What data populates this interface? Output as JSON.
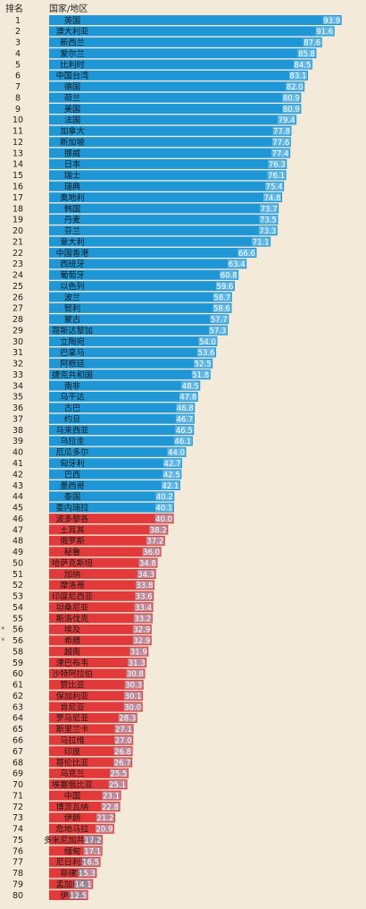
{
  "header": {
    "rank_label": "排名",
    "country_label": "国家/地区"
  },
  "chart_data": {
    "type": "bar",
    "orientation": "horizontal",
    "xlim": [
      0,
      100
    ],
    "grid": false,
    "colors": {
      "blue": "#1f97d6",
      "red": "#e23a3a",
      "value_box": "#9bd2ef",
      "background": "#f3ead9"
    },
    "rows": [
      {
        "rank": "1",
        "country": "英国",
        "value": 93.9
      },
      {
        "rank": "2",
        "country": "澳大利亚",
        "value": 91.6
      },
      {
        "rank": "3",
        "country": "新西兰",
        "value": 87.6
      },
      {
        "rank": "4",
        "country": "爱尔兰",
        "value": 85.8
      },
      {
        "rank": "5",
        "country": "比利时",
        "value": 84.5
      },
      {
        "rank": "6",
        "country": "中国台湾",
        "value": 83.1
      },
      {
        "rank": "7",
        "country": "德国",
        "value": 82.0
      },
      {
        "rank": "8",
        "country": "荷兰",
        "value": 80.9
      },
      {
        "rank": "9",
        "country": "美国",
        "value": 80.9
      },
      {
        "rank": "10",
        "country": "法国",
        "value": 79.4
      },
      {
        "rank": "11",
        "country": "加拿大",
        "value": 77.8
      },
      {
        "rank": "12",
        "country": "新加坡",
        "value": 77.6
      },
      {
        "rank": "13",
        "country": "挪威",
        "value": 77.4
      },
      {
        "rank": "14",
        "country": "日本",
        "value": 76.3
      },
      {
        "rank": "15",
        "country": "瑞士",
        "value": 76.1
      },
      {
        "rank": "16",
        "country": "瑞典",
        "value": 75.4
      },
      {
        "rank": "17",
        "country": "奥地利",
        "value": 74.8
      },
      {
        "rank": "18",
        "country": "韩国",
        "value": 73.7
      },
      {
        "rank": "19",
        "country": "丹麦",
        "value": 73.5
      },
      {
        "rank": "20",
        "country": "芬兰",
        "value": 73.3
      },
      {
        "rank": "21",
        "country": "意大利",
        "value": 71.1
      },
      {
        "rank": "22",
        "country": "中国香港",
        "value": 66.6
      },
      {
        "rank": "23",
        "country": "西班牙",
        "value": 63.4
      },
      {
        "rank": "24",
        "country": "葡萄牙",
        "value": 60.8
      },
      {
        "rank": "25",
        "country": "以色列",
        "value": 59.6
      },
      {
        "rank": "26",
        "country": "波兰",
        "value": 58.7
      },
      {
        "rank": "27",
        "country": "智利",
        "value": 58.6
      },
      {
        "rank": "28",
        "country": "蒙古",
        "value": 57.7
      },
      {
        "rank": "29",
        "country": "哥斯达黎加",
        "value": 57.3
      },
      {
        "rank": "30",
        "country": "立陶宛",
        "value": 54.0
      },
      {
        "rank": "31",
        "country": "巴拿马",
        "value": 53.6
      },
      {
        "rank": "32",
        "country": "阿根廷",
        "value": 52.5
      },
      {
        "rank": "33",
        "country": "捷克共和国",
        "value": 51.8
      },
      {
        "rank": "34",
        "country": "南非",
        "value": 48.5
      },
      {
        "rank": "35",
        "country": "乌干达",
        "value": 47.8
      },
      {
        "rank": "36",
        "country": "古巴",
        "value": 46.8
      },
      {
        "rank": "37",
        "country": "约旦",
        "value": 46.7
      },
      {
        "rank": "38",
        "country": "马来西亚",
        "value": 46.5
      },
      {
        "rank": "39",
        "country": "乌拉圭",
        "value": 46.1
      },
      {
        "rank": "40",
        "country": "厄瓜多尔",
        "value": 44.0
      },
      {
        "rank": "41",
        "country": "匈牙利",
        "value": 42.7
      },
      {
        "rank": "42",
        "country": "巴西",
        "value": 42.5
      },
      {
        "rank": "43",
        "country": "墨西哥",
        "value": 42.1
      },
      {
        "rank": "44",
        "country": "泰国",
        "value": 40.2
      },
      {
        "rank": "45",
        "country": "委内瑞拉",
        "value": 40.1
      },
      {
        "rank": "46",
        "country": "波多黎各",
        "value": 40.0
      },
      {
        "rank": "47",
        "country": "土耳其",
        "value": 38.2
      },
      {
        "rank": "48",
        "country": "俄罗斯",
        "value": 37.2
      },
      {
        "rank": "49",
        "country": "秘鲁",
        "value": 36.0
      },
      {
        "rank": "50",
        "country": "哈萨克斯坦",
        "value": 34.8
      },
      {
        "rank": "51",
        "country": "加纳",
        "value": 34.3
      },
      {
        "rank": "52",
        "country": "摩洛哥",
        "value": 33.8
      },
      {
        "rank": "53",
        "country": "印度尼西亚",
        "value": 33.6
      },
      {
        "rank": "54",
        "country": "坦桑尼亚",
        "value": 33.4
      },
      {
        "rank": "55",
        "country": "斯洛伐克",
        "value": 33.2
      },
      {
        "rank": "56",
        "country": "埃及",
        "value": 32.9,
        "marker": "*"
      },
      {
        "rank": "56",
        "country": "希腊",
        "value": 32.9,
        "marker": "*"
      },
      {
        "rank": "58",
        "country": "越南",
        "value": 31.9
      },
      {
        "rank": "59",
        "country": "津巴布韦",
        "value": 31.3
      },
      {
        "rank": "60",
        "country": "沙特阿拉伯",
        "value": 30.8
      },
      {
        "rank": "61",
        "country": "赞比亚",
        "value": 30.3
      },
      {
        "rank": "62",
        "country": "保加利亚",
        "value": 30.1
      },
      {
        "rank": "63",
        "country": "肯尼亚",
        "value": 30.0
      },
      {
        "rank": "64",
        "country": "罗马尼亚",
        "value": 28.3
      },
      {
        "rank": "65",
        "country": "斯里兰卡",
        "value": 27.1
      },
      {
        "rank": "66",
        "country": "马拉维",
        "value": 27.0
      },
      {
        "rank": "67",
        "country": "印度",
        "value": 26.8
      },
      {
        "rank": "68",
        "country": "哥伦比亚",
        "value": 26.7
      },
      {
        "rank": "69",
        "country": "乌克兰",
        "value": 25.5
      },
      {
        "rank": "70",
        "country": "埃塞俄比亚",
        "value": 25.1
      },
      {
        "rank": "71",
        "country": "中国",
        "value": 23.1
      },
      {
        "rank": "72",
        "country": "博茨瓦纳",
        "value": 22.8
      },
      {
        "rank": "73",
        "country": "伊朗",
        "value": 21.2
      },
      {
        "rank": "74",
        "country": "危地马拉",
        "value": 20.9
      },
      {
        "rank": "75",
        "country": "多米尼加共和国",
        "value": 17.2
      },
      {
        "rank": "76",
        "country": "缅甸",
        "value": 17.1
      },
      {
        "rank": "77",
        "country": "尼日利亚",
        "value": 16.5
      },
      {
        "rank": "78",
        "country": "菲律宾",
        "value": 15.3
      },
      {
        "rank": "79",
        "country": "孟加拉国",
        "value": 14.1
      },
      {
        "rank": "80",
        "country": "伊拉克",
        "value": 12.5
      }
    ]
  }
}
